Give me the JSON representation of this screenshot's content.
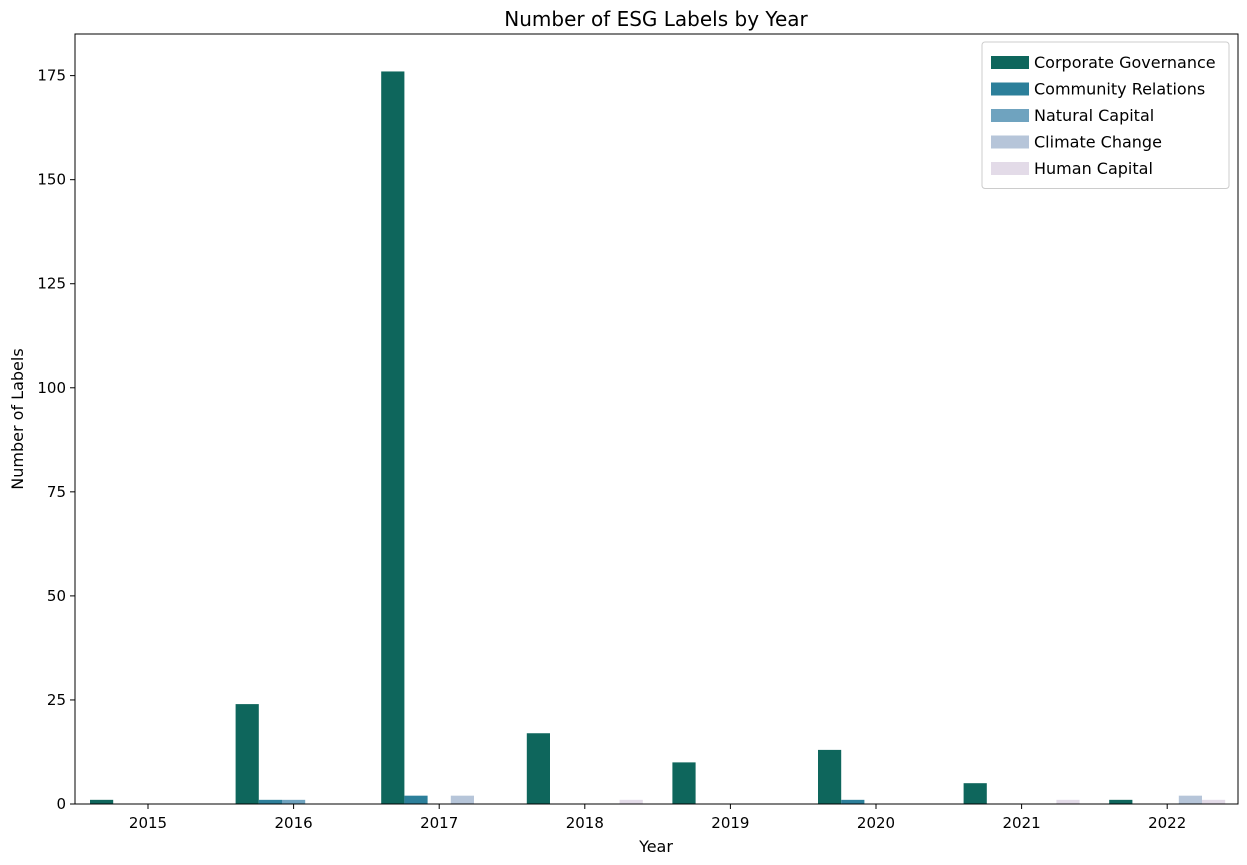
{
  "chart_data": {
    "type": "bar",
    "title": "Number of ESG Labels by Year",
    "xlabel": "Year",
    "ylabel": "Number of Labels",
    "categories": [
      "2015",
      "2016",
      "2017",
      "2018",
      "2019",
      "2020",
      "2021",
      "2022"
    ],
    "ylim": [
      0,
      185
    ],
    "yticks": [
      0,
      25,
      50,
      75,
      100,
      125,
      150,
      175
    ],
    "grid": false,
    "legend_position": "top-right",
    "series": [
      {
        "name": "Corporate Governance",
        "color": "#0e665c",
        "values": [
          1,
          24,
          176,
          17,
          10,
          13,
          5,
          1
        ]
      },
      {
        "name": "Community Relations",
        "color": "#2c7f9a",
        "values": [
          0,
          1,
          2,
          0,
          0,
          1,
          0,
          0
        ]
      },
      {
        "name": "Natural Capital",
        "color": "#6fa3bf",
        "values": [
          0,
          1,
          0,
          0,
          0,
          0,
          0,
          0
        ]
      },
      {
        "name": "Climate Change",
        "color": "#b6c5d9",
        "values": [
          0,
          0,
          2,
          0,
          0,
          0,
          0,
          2
        ]
      },
      {
        "name": "Human Capital",
        "color": "#e3dbe8",
        "values": [
          0,
          0,
          0,
          1,
          0,
          0,
          1,
          1
        ]
      }
    ]
  }
}
